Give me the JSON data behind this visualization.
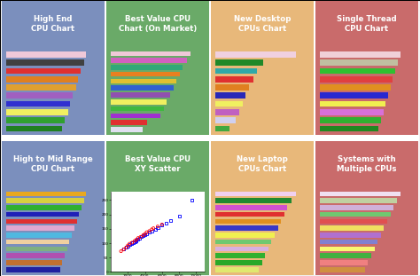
{
  "bg_colors": [
    "#7b8fbd",
    "#6aaa68",
    "#e8b87a",
    "#c96b6b"
  ],
  "titles_top": [
    "High End\nCPU Chart",
    "Best Value CPU\nChart (On Market)",
    "New Desktop\nCPUs Chart",
    "Single Thread\nCPU Chart"
  ],
  "titles_bottom": [
    "High to Mid Range\nCPU Chart",
    "Best Value CPU\nXY Scatter",
    "New Laptop\nCPUs Chart",
    "Systems with\nMultiple CPUs"
  ],
  "bar_colors_highend": [
    "#f0c8d8",
    "#404040",
    "#e03030",
    "#e08020",
    "#e0a030",
    "#a060c0",
    "#3030d0",
    "#f0f060",
    "#30a030",
    "#208020"
  ],
  "bar_vals_highend": [
    1.0,
    0.97,
    0.93,
    0.9,
    0.87,
    0.83,
    0.8,
    0.77,
    0.73,
    0.7
  ],
  "bar_colors_bestval": [
    "#f0c8d8",
    "#d060c0",
    "#30a878",
    "#e88020",
    "#e0c030",
    "#3060d0",
    "#9050b0",
    "#f0f060",
    "#40b840",
    "#a030d0",
    "#e03030",
    "#e0e0f0"
  ],
  "bar_vals_bestval": [
    1.0,
    0.95,
    0.9,
    0.86,
    0.82,
    0.78,
    0.74,
    0.7,
    0.66,
    0.62,
    0.45,
    0.4
  ],
  "bar_colors_desktop": [
    "#f0d0e0",
    "#208828",
    "#30a8a8",
    "#e03030",
    "#e08020",
    "#2828b8",
    "#f0f060",
    "#c060c0",
    "#d0d0f0",
    "#40a840"
  ],
  "bar_vals_desktop": [
    1.0,
    0.6,
    0.52,
    0.47,
    0.42,
    0.38,
    0.34,
    0.3,
    0.25,
    0.18
  ],
  "bar_colors_single": [
    "#f0d0d8",
    "#c0c0a0",
    "#30c030",
    "#e04040",
    "#e09020",
    "#2828d0",
    "#f0f050",
    "#d870d8",
    "#30b030",
    "#208820"
  ],
  "bar_vals_single": [
    1.0,
    0.97,
    0.94,
    0.91,
    0.88,
    0.85,
    0.82,
    0.79,
    0.76,
    0.73
  ],
  "bar_colors_midrange": [
    "#e8a820",
    "#d8d040",
    "#30b030",
    "#2020b8",
    "#e03030",
    "#e0a8d0",
    "#50b8e0",
    "#f0d0a0",
    "#80b080",
    "#b050b0",
    "#c07030",
    "#2020a0"
  ],
  "bar_vals_midrange": [
    1.0,
    0.97,
    0.94,
    0.91,
    0.88,
    0.85,
    0.82,
    0.79,
    0.76,
    0.73,
    0.7,
    0.67
  ],
  "bar_colors_laptop": [
    "#f0d0f0",
    "#208830",
    "#d050d0",
    "#e03030",
    "#e09020",
    "#3838c8",
    "#f0f050",
    "#70c870",
    "#d8b0e0",
    "#30b030",
    "#28a828",
    "#e0e870"
  ],
  "bar_vals_laptop": [
    1.0,
    0.95,
    0.9,
    0.86,
    0.82,
    0.78,
    0.74,
    0.7,
    0.66,
    0.62,
    0.58,
    0.54
  ],
  "bar_colors_systems": [
    "#f0e0f0",
    "#c0d0a0",
    "#d0b0d8",
    "#70c870",
    "#e05050",
    "#f0e060",
    "#b070d0",
    "#8080d0",
    "#f8f870",
    "#40b040",
    "#f08080",
    "#d09040"
  ],
  "bar_vals_systems": [
    1.0,
    0.96,
    0.92,
    0.88,
    0.84,
    0.8,
    0.76,
    0.72,
    0.68,
    0.64,
    0.6,
    0.56
  ],
  "scatter_blue_x": [
    1500,
    1800,
    2000,
    2200,
    2400,
    2600,
    2800,
    3000,
    3000,
    3200,
    3400,
    3600,
    3800,
    4000,
    4200,
    4500,
    4800,
    5200,
    5500,
    6000,
    6500,
    7000,
    8000,
    9500
  ],
  "scatter_blue_y": [
    80,
    85,
    90,
    95,
    100,
    102,
    105,
    108,
    112,
    115,
    118,
    122,
    125,
    128,
    132,
    138,
    142,
    148,
    155,
    162,
    170,
    180,
    195,
    250
  ],
  "scatter_red_x": [
    1200,
    1500,
    1800,
    2000,
    2200,
    2500,
    2800,
    3000,
    3200,
    3500,
    3800,
    4000,
    4200,
    4500,
    4800,
    5000,
    5500,
    6000
  ],
  "scatter_red_y": [
    72,
    78,
    85,
    92,
    98,
    102,
    108,
    112,
    118,
    122,
    128,
    132,
    138,
    142,
    148,
    152,
    158,
    165
  ]
}
